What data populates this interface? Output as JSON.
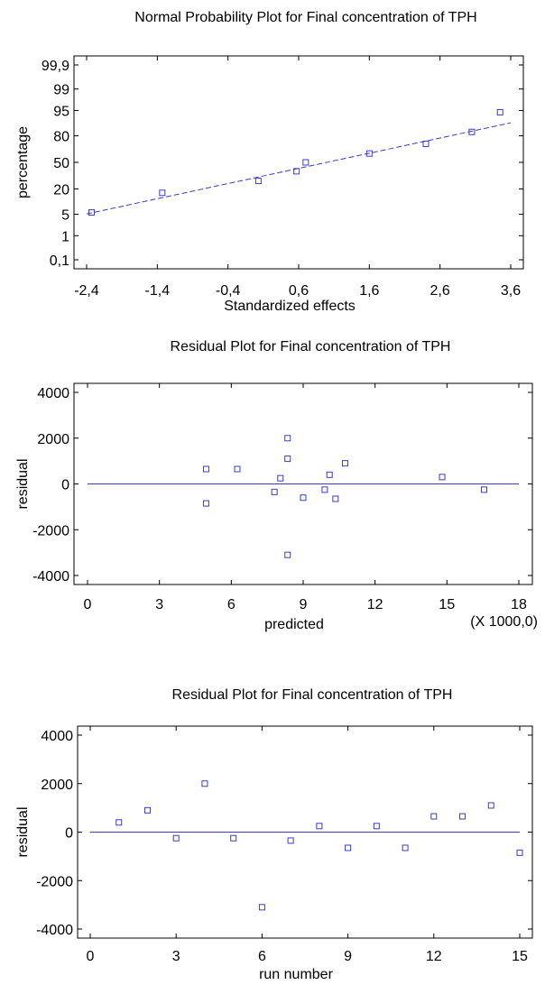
{
  "chart_data": [
    {
      "type": "scatter",
      "title": "Normal Probability Plot for Final concentration of TPH",
      "xlabel": "Standardized effects",
      "ylabel": "percentage",
      "x_scale": "linear",
      "y_scale": "normal-probability",
      "xlim": [
        -2.4,
        3.6
      ],
      "ylim_percent": [
        0.1,
        99.9
      ],
      "x_ticks": [
        -2.4,
        -1.4,
        -0.4,
        0.6,
        1.6,
        2.6,
        3.6
      ],
      "x_tick_labels": [
        "-2,4",
        "-1,4",
        "-0,4",
        "0,6",
        "1,6",
        "2,6",
        "3,6"
      ],
      "y_ticks": [
        0.1,
        1,
        5,
        20,
        50,
        80,
        95,
        99,
        99.9
      ],
      "y_tick_labels": [
        "0,1",
        "1",
        "5",
        "20",
        "50",
        "80",
        "95",
        "99",
        "99,9"
      ],
      "x_unit_note": "",
      "points": [
        {
          "x": -2.33,
          "y": 5.6
        },
        {
          "x": -1.33,
          "y": 16.7
        },
        {
          "x": 0.03,
          "y": 27.8
        },
        {
          "x": 0.57,
          "y": 38.9
        },
        {
          "x": 0.7,
          "y": 50.0
        },
        {
          "x": 1.6,
          "y": 61.1
        },
        {
          "x": 2.4,
          "y": 72.2
        },
        {
          "x": 3.05,
          "y": 83.3
        },
        {
          "x": 3.45,
          "y": 94.4
        }
      ],
      "reference_line": {
        "style": "dashed",
        "x": [
          -2.4,
          3.6
        ],
        "y": [
          5.1,
          89.5
        ]
      }
    },
    {
      "type": "scatter",
      "title": "Residual Plot for Final concentration of TPH",
      "xlabel": "predicted",
      "ylabel": "residual",
      "xlim": [
        0,
        18
      ],
      "ylim": [
        -4000,
        4000
      ],
      "x_ticks": [
        0,
        3,
        6,
        9,
        12,
        15,
        18
      ],
      "x_tick_labels": [
        "0",
        "3",
        "6",
        "9",
        "12",
        "15",
        "18"
      ],
      "y_ticks": [
        -4000,
        -2000,
        0,
        2000,
        4000
      ],
      "y_tick_labels": [
        "-4000",
        "-2000",
        "0",
        "2000",
        "4000"
      ],
      "x_unit_note": "(X 1000,0)",
      "points": [
        {
          "x": 4.95,
          "y": 650
        },
        {
          "x": 4.95,
          "y": -850
        },
        {
          "x": 6.25,
          "y": 650
        },
        {
          "x": 7.8,
          "y": -350
        },
        {
          "x": 8.05,
          "y": 250
        },
        {
          "x": 8.35,
          "y": 2000
        },
        {
          "x": 8.35,
          "y": 1100
        },
        {
          "x": 8.35,
          "y": -3100
        },
        {
          "x": 9.0,
          "y": -600
        },
        {
          "x": 9.9,
          "y": -250
        },
        {
          "x": 10.1,
          "y": 400
        },
        {
          "x": 10.35,
          "y": -650
        },
        {
          "x": 10.75,
          "y": 900
        },
        {
          "x": 14.8,
          "y": 300
        },
        {
          "x": 16.55,
          "y": -250
        }
      ],
      "reference_line": {
        "style": "solid",
        "x": [
          0,
          18
        ],
        "y": [
          0,
          0
        ]
      }
    },
    {
      "type": "scatter",
      "title": "Residual Plot for Final concentration of TPH",
      "xlabel": "run number",
      "ylabel": "residual",
      "xlim": [
        0,
        15
      ],
      "ylim": [
        -4000,
        4000
      ],
      "x_ticks": [
        0,
        3,
        6,
        9,
        12,
        15
      ],
      "x_tick_labels": [
        "0",
        "3",
        "6",
        "9",
        "12",
        "15"
      ],
      "y_ticks": [
        -4000,
        -2000,
        0,
        2000,
        4000
      ],
      "y_tick_labels": [
        "-4000",
        "-2000",
        "0",
        "2000",
        "4000"
      ],
      "x_unit_note": "",
      "points": [
        {
          "x": 1,
          "y": 400
        },
        {
          "x": 2,
          "y": 900
        },
        {
          "x": 3,
          "y": -250
        },
        {
          "x": 4,
          "y": 2000
        },
        {
          "x": 5,
          "y": -250
        },
        {
          "x": 6,
          "y": -3100
        },
        {
          "x": 7,
          "y": -350
        },
        {
          "x": 8,
          "y": 250
        },
        {
          "x": 9,
          "y": -650
        },
        {
          "x": 10,
          "y": 250
        },
        {
          "x": 11,
          "y": -650
        },
        {
          "x": 12,
          "y": 650
        },
        {
          "x": 13,
          "y": 650
        },
        {
          "x": 14,
          "y": 1100
        },
        {
          "x": 15,
          "y": -850
        }
      ],
      "reference_line": {
        "style": "solid",
        "x": [
          0,
          15
        ],
        "y": [
          0,
          0
        ]
      }
    }
  ]
}
